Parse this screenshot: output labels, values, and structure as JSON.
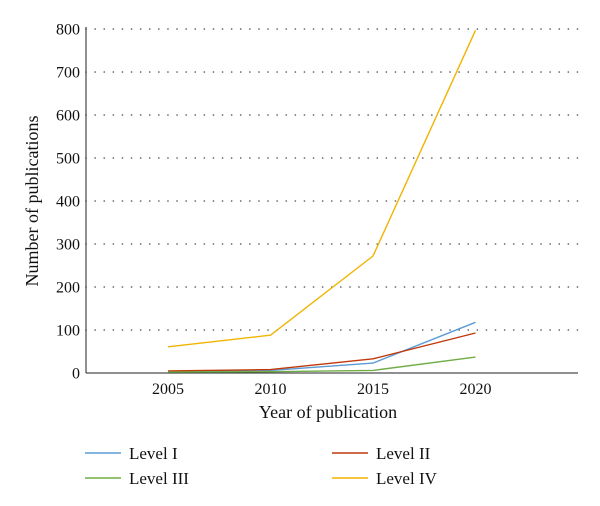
{
  "chart_data": {
    "type": "line",
    "title": "",
    "xlabel": "Year of publication",
    "ylabel": "Number of publications",
    "x": [
      2005,
      2010,
      2015,
      2020
    ],
    "xlim": [
      2001,
      2025
    ],
    "ylim": [
      0,
      800
    ],
    "yticks": [
      0,
      100,
      200,
      300,
      400,
      500,
      600,
      700,
      800
    ],
    "xticks": [
      2005,
      2010,
      2015,
      2020
    ],
    "grid": "horizontal-dotted",
    "legend_position": "bottom",
    "series": [
      {
        "name": "Level I",
        "color": "#5b9bd5",
        "values": [
          3,
          6,
          23,
          118
        ]
      },
      {
        "name": "Level II",
        "color": "#c0390b",
        "values": [
          5,
          8,
          33,
          93
        ]
      },
      {
        "name": "Level III",
        "color": "#70ad47",
        "values": [
          2,
          3,
          6,
          37
        ]
      },
      {
        "name": "Level IV",
        "color": "#f0b400",
        "values": [
          61,
          88,
          272,
          797
        ]
      }
    ]
  }
}
